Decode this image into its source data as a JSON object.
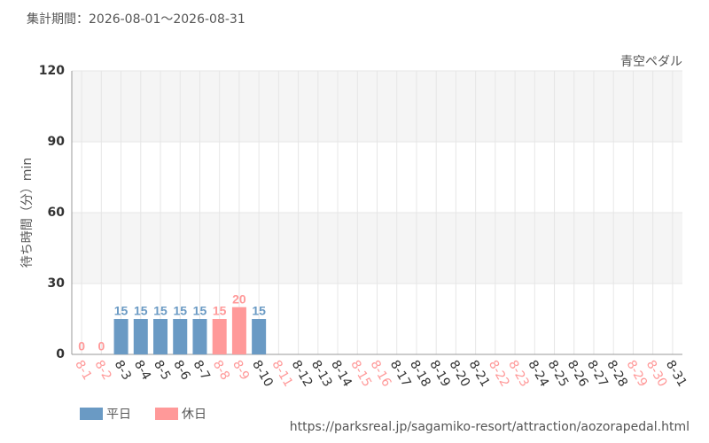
{
  "header": "集計期間：2026-08-01～2026-08-31",
  "chart_data": {
    "type": "bar",
    "subtitle": "青空ペダル",
    "y_label": "待ち時間（分）min",
    "categories": [
      "8-1",
      "8-2",
      "8-3",
      "8-4",
      "8-5",
      "8-6",
      "8-7",
      "8-8",
      "8-9",
      "8-10",
      "8-11",
      "8-12",
      "8-13",
      "8-14",
      "8-15",
      "8-16",
      "8-17",
      "8-18",
      "8-19",
      "8-20",
      "8-21",
      "8-22",
      "8-23",
      "8-24",
      "8-25",
      "8-26",
      "8-27",
      "8-28",
      "8-29",
      "8-30",
      "8-31"
    ],
    "holiday": [
      true,
      true,
      false,
      false,
      false,
      false,
      false,
      true,
      true,
      false,
      true,
      false,
      false,
      false,
      true,
      true,
      false,
      false,
      false,
      false,
      false,
      true,
      true,
      false,
      false,
      false,
      false,
      false,
      true,
      true,
      false
    ],
    "series": [
      {
        "name": "平日",
        "color": "#6a9ac4",
        "values": [
          null,
          null,
          15,
          15,
          15,
          15,
          15,
          null,
          null,
          15,
          null,
          null,
          null,
          null,
          null,
          null,
          null,
          null,
          null,
          null,
          null,
          null,
          null,
          null,
          null,
          null,
          null,
          null,
          null,
          null,
          null
        ]
      },
      {
        "name": "休日",
        "color": "#ff9999",
        "values": [
          0,
          0,
          null,
          null,
          null,
          null,
          null,
          15,
          20,
          null,
          null,
          null,
          null,
          null,
          null,
          null,
          null,
          null,
          null,
          null,
          null,
          null,
          null,
          null,
          null,
          null,
          null,
          null,
          null,
          null,
          null
        ]
      }
    ],
    "ylim": [
      0,
      120
    ],
    "yticks": [
      0,
      30,
      60,
      90,
      120
    ],
    "grid": true,
    "legend": "bottom-left"
  },
  "footer": "https://parksreal.jp/sagamiko-resort/attraction/aozorapedal.html"
}
